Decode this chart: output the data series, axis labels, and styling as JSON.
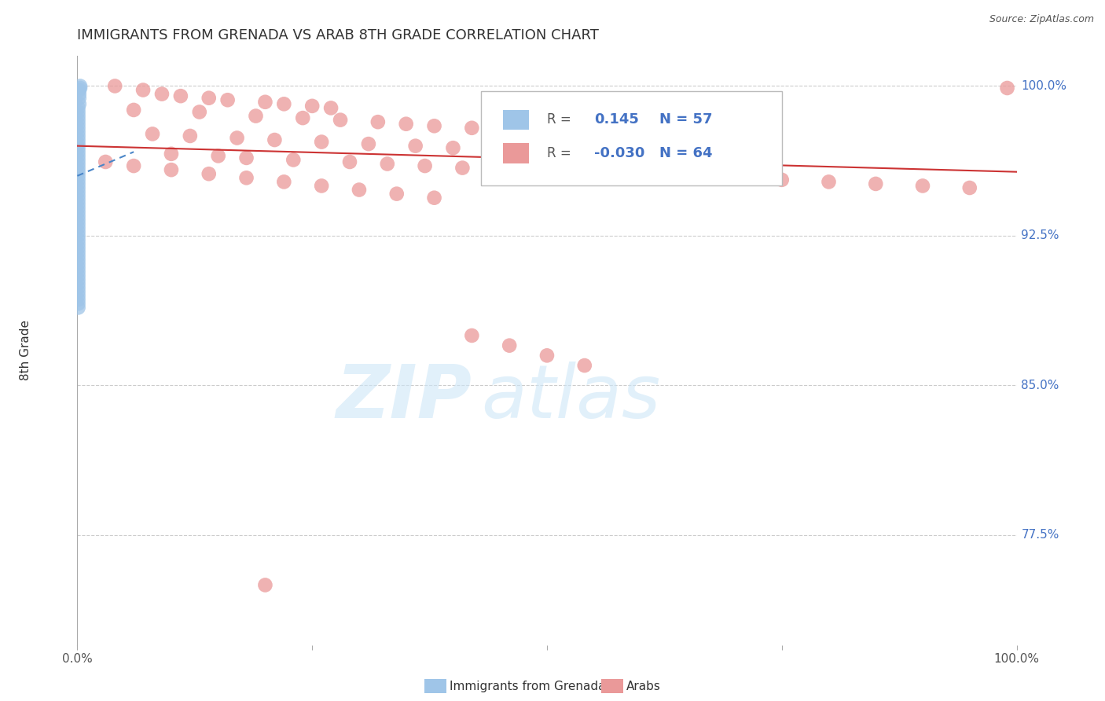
{
  "title": "IMMIGRANTS FROM GRENADA VS ARAB 8TH GRADE CORRELATION CHART",
  "source_text": "Source: ZipAtlas.com",
  "ylabel": "8th Grade",
  "xlim": [
    0.0,
    1.0
  ],
  "ylim": [
    0.72,
    1.015
  ],
  "ytick_positions": [
    0.775,
    0.85,
    0.925,
    1.0
  ],
  "ytick_labels": [
    "77.5%",
    "85.0%",
    "92.5%",
    "100.0%"
  ],
  "legend_R1": "0.145",
  "legend_N1": "57",
  "legend_R2": "-0.030",
  "legend_N2": "64",
  "color_blue": "#9fc5e8",
  "color_pink": "#ea9999",
  "color_blue_line": "#4a86c8",
  "color_pink_line": "#cc3333",
  "background_color": "#ffffff",
  "grenada_x": [
    0.003,
    0.003,
    0.002,
    0.002,
    0.002,
    0.002,
    0.001,
    0.001,
    0.001,
    0.001,
    0.001,
    0.001,
    0.001,
    0.001,
    0.001,
    0.001,
    0.001,
    0.001,
    0.001,
    0.001,
    0.001,
    0.001,
    0.001,
    0.001,
    0.001,
    0.001,
    0.001,
    0.001,
    0.001,
    0.001,
    0.001,
    0.001,
    0.001,
    0.001,
    0.001,
    0.001,
    0.001,
    0.001,
    0.001,
    0.001,
    0.001,
    0.001,
    0.001,
    0.001,
    0.001,
    0.001,
    0.001,
    0.001,
    0.001,
    0.001,
    0.001,
    0.001,
    0.001,
    0.001,
    0.001,
    0.001,
    0.001
  ],
  "grenada_y": [
    1.0,
    0.999,
    0.998,
    0.996,
    0.994,
    0.991,
    0.989,
    0.987,
    0.985,
    0.983,
    0.981,
    0.979,
    0.977,
    0.975,
    0.973,
    0.971,
    0.969,
    0.967,
    0.965,
    0.963,
    0.961,
    0.959,
    0.957,
    0.955,
    0.953,
    0.951,
    0.949,
    0.947,
    0.945,
    0.943,
    0.941,
    0.939,
    0.937,
    0.935,
    0.933,
    0.931,
    0.929,
    0.927,
    0.925,
    0.923,
    0.921,
    0.919,
    0.917,
    0.915,
    0.913,
    0.911,
    0.909,
    0.907,
    0.905,
    0.903,
    0.901,
    0.899,
    0.897,
    0.895,
    0.893,
    0.891,
    0.889
  ],
  "arab_x": [
    0.04,
    0.07,
    0.09,
    0.11,
    0.14,
    0.16,
    0.2,
    0.22,
    0.25,
    0.27,
    0.06,
    0.13,
    0.19,
    0.24,
    0.28,
    0.32,
    0.35,
    0.38,
    0.42,
    0.45,
    0.08,
    0.12,
    0.17,
    0.21,
    0.26,
    0.31,
    0.36,
    0.4,
    0.44,
    0.48,
    0.1,
    0.15,
    0.18,
    0.23,
    0.29,
    0.33,
    0.37,
    0.41,
    0.5,
    0.55,
    0.6,
    0.65,
    0.7,
    0.75,
    0.8,
    0.85,
    0.9,
    0.95,
    0.99,
    0.03,
    0.06,
    0.1,
    0.14,
    0.18,
    0.22,
    0.26,
    0.3,
    0.34,
    0.38,
    0.42,
    0.46,
    0.5,
    0.54,
    0.2
  ],
  "arab_y": [
    1.0,
    0.998,
    0.996,
    0.995,
    0.994,
    0.993,
    0.992,
    0.991,
    0.99,
    0.989,
    0.988,
    0.987,
    0.985,
    0.984,
    0.983,
    0.982,
    0.981,
    0.98,
    0.979,
    0.978,
    0.976,
    0.975,
    0.974,
    0.973,
    0.972,
    0.971,
    0.97,
    0.969,
    0.968,
    0.967,
    0.966,
    0.965,
    0.964,
    0.963,
    0.962,
    0.961,
    0.96,
    0.959,
    0.958,
    0.957,
    0.956,
    0.955,
    0.954,
    0.953,
    0.952,
    0.951,
    0.95,
    0.949,
    0.999,
    0.962,
    0.96,
    0.958,
    0.956,
    0.954,
    0.952,
    0.95,
    0.948,
    0.946,
    0.944,
    0.875,
    0.87,
    0.865,
    0.86,
    0.75
  ],
  "pink_line_x0": 0.0,
  "pink_line_x1": 1.0,
  "pink_line_y0": 0.97,
  "pink_line_y1": 0.957,
  "blue_line_x0": 0.0,
  "blue_line_x1": 0.06,
  "blue_line_y0": 0.955,
  "blue_line_y1": 0.967
}
